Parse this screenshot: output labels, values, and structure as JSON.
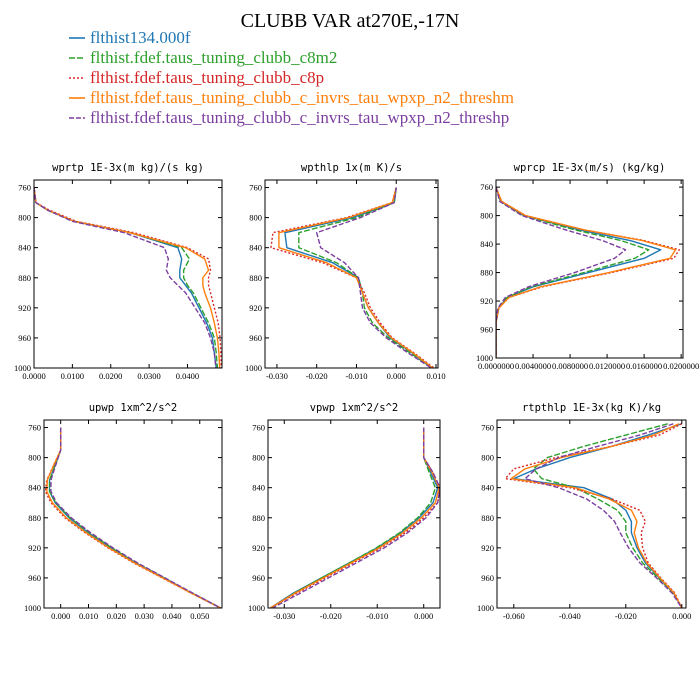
{
  "title": "CLUBB VAR at270E,-17N",
  "legend": [
    {
      "name": "flthist134.000f",
      "color": "#1f77b4",
      "dash": ""
    },
    {
      "name": "flthist.fdef.taus_tuning_clubb_c8m2",
      "color": "#2ca02c",
      "dash": "6,2"
    },
    {
      "name": "flthist.fdef.taus_tuning_clubb_c8p",
      "color": "#d62728",
      "dash": "2,2"
    },
    {
      "name": "flthist.fdef.taus_tuning_clubb_c_invrs_tau_wpxp_n2_threshm",
      "color": "#ff7f0e",
      "dash": ""
    },
    {
      "name": "flthist.fdef.taus_tuning_clubb_c_invrs_tau_wpxp_n2_threshp",
      "color": "#7b3fa0",
      "dash": "5,2"
    }
  ],
  "chart_data": [
    {
      "type": "line",
      "title": "wprtp  1E-3x(m kg)/(s kg)",
      "xlim": [
        0,
        0.049
      ],
      "ylim": [
        750,
        1000
      ],
      "y_reversed": true,
      "xticks": [
        "0.0000",
        "0.0100",
        "0.0200",
        "0.0300",
        "0.0400"
      ],
      "xtick_values": [
        0,
        0.01,
        0.02,
        0.03,
        0.04
      ],
      "yticks": [
        "760",
        "800",
        "840",
        "880",
        "920",
        "960",
        "1000"
      ],
      "y": [
        760,
        780,
        790,
        805,
        820,
        840,
        855,
        870,
        880,
        890,
        900,
        920,
        940,
        960,
        980,
        1000
      ],
      "series": [
        {
          "values": [
            0.0,
            0.0005,
            0.0035,
            0.0105,
            0.025,
            0.0375,
            0.0385,
            0.038,
            0.038,
            0.0395,
            0.041,
            0.043,
            0.045,
            0.0465,
            0.047,
            0.0475
          ]
        },
        {
          "values": [
            0.0,
            0.0005,
            0.0035,
            0.0105,
            0.025,
            0.0385,
            0.0405,
            0.039,
            0.039,
            0.04,
            0.0415,
            0.0435,
            0.0455,
            0.047,
            0.0475,
            0.0478
          ]
        },
        {
          "values": [
            0.0,
            0.0005,
            0.004,
            0.011,
            0.026,
            0.04,
            0.0455,
            0.046,
            0.0455,
            0.0455,
            0.046,
            0.047,
            0.048,
            0.0485,
            0.0487,
            0.0488
          ]
        },
        {
          "values": [
            0.0,
            0.0005,
            0.0035,
            0.0105,
            0.025,
            0.0395,
            0.0445,
            0.0455,
            0.044,
            0.044,
            0.0445,
            0.046,
            0.047,
            0.0478,
            0.0482,
            0.0484
          ]
        },
        {
          "values": [
            0.0,
            0.0005,
            0.0035,
            0.01,
            0.0235,
            0.034,
            0.035,
            0.0345,
            0.0355,
            0.0375,
            0.0395,
            0.042,
            0.0445,
            0.046,
            0.047,
            0.0474
          ]
        }
      ]
    },
    {
      "type": "line",
      "title": "wpthlp  1x(m K)/s",
      "xlim": [
        -0.033,
        0.0105
      ],
      "ylim": [
        750,
        1000
      ],
      "y_reversed": true,
      "xticks": [
        "-0.030",
        "-0.020",
        "-0.010",
        "0.000",
        "0.010"
      ],
      "xtick_values": [
        -0.03,
        -0.02,
        -0.01,
        0,
        0.01
      ],
      "yticks": [
        "760",
        "800",
        "840",
        "880",
        "920",
        "960",
        "1000"
      ],
      "y": [
        760,
        780,
        800,
        820,
        840,
        860,
        880,
        900,
        920,
        940,
        960,
        980,
        1000
      ],
      "series": [
        {
          "values": [
            0.0,
            -0.0005,
            -0.011,
            -0.028,
            -0.0275,
            -0.016,
            -0.0095,
            -0.0085,
            -0.007,
            -0.0045,
            -0.0015,
            0.004,
            0.009
          ]
        },
        {
          "values": [
            0.0,
            -0.0005,
            -0.01,
            -0.0245,
            -0.0245,
            -0.015,
            -0.0095,
            -0.0085,
            -0.008,
            -0.006,
            -0.002,
            0.0035,
            0.009
          ]
        },
        {
          "values": [
            0.0,
            -0.001,
            -0.0125,
            -0.031,
            -0.0315,
            -0.0185,
            -0.01,
            -0.008,
            -0.0065,
            -0.004,
            -0.001,
            0.0045,
            0.0095
          ]
        },
        {
          "values": [
            0.0,
            -0.001,
            -0.012,
            -0.0295,
            -0.0295,
            -0.0175,
            -0.01,
            -0.0085,
            -0.007,
            -0.0045,
            -0.0012,
            0.0042,
            0.0092
          ]
        },
        {
          "values": [
            0.0,
            -0.0005,
            -0.009,
            -0.02,
            -0.019,
            -0.013,
            -0.0095,
            -0.009,
            -0.0085,
            -0.0065,
            -0.0025,
            0.003,
            0.0088
          ]
        }
      ]
    },
    {
      "type": "line",
      "title": "wprcp  1E-3x(m/s) (kg/kg)",
      "xlim": [
        0,
        0.0202
      ],
      "ylim": [
        750,
        1000
      ],
      "y_reversed": true,
      "xticks": [
        "0.0000000",
        "0.0040000",
        "0.0080000",
        "0.0120000",
        "0.0160000",
        "0.0200000"
      ],
      "xtick_values": [
        0,
        0.004,
        0.008,
        0.012,
        0.016,
        0.02
      ],
      "yticks": [
        "760",
        "800",
        "840",
        "880",
        "920",
        "960",
        "1000"
      ],
      "y": [
        760,
        780,
        800,
        820,
        835,
        848,
        860,
        880,
        900,
        915,
        930,
        950,
        1000
      ],
      "series": [
        {
          "values": [
            0.0,
            0.0005,
            0.003,
            0.009,
            0.0145,
            0.0178,
            0.016,
            0.01,
            0.004,
            0.0012,
            0.0003,
            0.0,
            0.0
          ]
        },
        {
          "values": [
            0.0,
            0.0005,
            0.003,
            0.0085,
            0.0135,
            0.0165,
            0.015,
            0.0095,
            0.0038,
            0.0012,
            0.0003,
            0.0,
            0.0
          ]
        },
        {
          "values": [
            0.0,
            0.0006,
            0.0032,
            0.0095,
            0.016,
            0.0198,
            0.0192,
            0.0125,
            0.005,
            0.0014,
            0.0003,
            0.0,
            0.0
          ]
        },
        {
          "values": [
            0.0,
            0.0006,
            0.0032,
            0.0095,
            0.0158,
            0.0194,
            0.0188,
            0.0122,
            0.0048,
            0.0014,
            0.0003,
            0.0,
            0.0
          ]
        },
        {
          "values": [
            0.0,
            0.0004,
            0.0028,
            0.0075,
            0.0115,
            0.014,
            0.0128,
            0.0085,
            0.0035,
            0.001,
            0.0002,
            0.0,
            0.0
          ]
        }
      ]
    },
    {
      "type": "line",
      "title": "upwp  1xm^2/s^2",
      "xlim": [
        -0.006,
        0.058
      ],
      "ylim": [
        750,
        1000
      ],
      "y_reversed": true,
      "xticks": [
        "0.000",
        "0.010",
        "0.020",
        "0.030",
        "0.040",
        "0.050"
      ],
      "xtick_values": [
        0,
        0.01,
        0.02,
        0.03,
        0.04,
        0.05
      ],
      "yticks": [
        "760",
        "800",
        "840",
        "880",
        "920",
        "960",
        "1000"
      ],
      "y": [
        760,
        790,
        810,
        830,
        845,
        860,
        880,
        900,
        920,
        940,
        960,
        980,
        1000
      ],
      "series": [
        {
          "values": [
            0.0,
            0.0,
            -0.002,
            -0.004,
            -0.004,
            -0.002,
            0.003,
            0.01,
            0.018,
            0.027,
            0.037,
            0.047,
            0.0575
          ]
        },
        {
          "values": [
            0.0,
            0.0,
            -0.002,
            -0.004,
            -0.004,
            -0.0018,
            0.0033,
            0.0103,
            0.0183,
            0.0272,
            0.0372,
            0.0472,
            0.0575
          ]
        },
        {
          "values": [
            0.0,
            0.0,
            -0.0025,
            -0.005,
            -0.0055,
            -0.0035,
            0.0015,
            0.0088,
            0.017,
            0.0262,
            0.0365,
            0.0468,
            0.0575
          ]
        },
        {
          "values": [
            0.0,
            0.0,
            -0.0025,
            -0.0048,
            -0.005,
            -0.003,
            0.002,
            0.0092,
            0.0173,
            0.0265,
            0.0367,
            0.0469,
            0.0575
          ]
        },
        {
          "values": [
            0.0,
            0.0,
            -0.0018,
            -0.0035,
            -0.0035,
            -0.0015,
            0.0038,
            0.0108,
            0.0188,
            0.0276,
            0.0375,
            0.0474,
            0.0575
          ]
        }
      ]
    },
    {
      "type": "line",
      "title": "vpwp  1xm^2/s^2",
      "xlim": [
        -0.0335,
        0.0035
      ],
      "ylim": [
        750,
        1000
      ],
      "y_reversed": true,
      "xticks": [
        "-0.030",
        "-0.020",
        "-0.010",
        "0.000"
      ],
      "xtick_values": [
        -0.03,
        -0.02,
        -0.01,
        0
      ],
      "yticks": [
        "760",
        "800",
        "840",
        "880",
        "920",
        "960",
        "1000"
      ],
      "y": [
        760,
        800,
        820,
        840,
        860,
        880,
        900,
        920,
        940,
        960,
        980,
        1000
      ],
      "series": [
        {
          "values": [
            0.0,
            0.0,
            0.0015,
            0.003,
            0.002,
            -0.001,
            -0.005,
            -0.01,
            -0.016,
            -0.022,
            -0.028,
            -0.033
          ]
        },
        {
          "values": [
            0.0,
            0.0,
            0.0012,
            0.0025,
            0.0015,
            -0.0013,
            -0.0052,
            -0.0102,
            -0.016,
            -0.022,
            -0.0278,
            -0.0328
          ]
        },
        {
          "values": [
            0.0,
            0.0,
            0.002,
            0.0035,
            0.003,
            0.0,
            -0.004,
            -0.0092,
            -0.0152,
            -0.0212,
            -0.0272,
            -0.033
          ]
        },
        {
          "values": [
            0.0,
            0.0,
            0.0018,
            0.0033,
            0.0025,
            -0.0005,
            -0.0045,
            -0.0096,
            -0.0156,
            -0.0216,
            -0.0276,
            -0.033
          ]
        },
        {
          "values": [
            0.0,
            0.0,
            0.002,
            0.0035,
            0.003,
            0.0005,
            -0.0035,
            -0.0085,
            -0.0145,
            -0.0205,
            -0.0265,
            -0.0325
          ]
        }
      ]
    },
    {
      "type": "line",
      "title": "rtpthlp  1E-3x(kg K)/kg",
      "xlim": [
        -0.066,
        0.0015
      ],
      "ylim": [
        750,
        1000
      ],
      "y_reversed": true,
      "xticks": [
        "-0.060",
        "-0.040",
        "-0.020",
        "0.000"
      ],
      "xtick_values": [
        -0.06,
        -0.04,
        -0.02,
        0
      ],
      "yticks": [
        "760",
        "800",
        "840",
        "880",
        "920",
        "960",
        "1000"
      ],
      "y": [
        755,
        770,
        785,
        800,
        815,
        828,
        840,
        855,
        870,
        885,
        900,
        920,
        940,
        960,
        980,
        1000
      ],
      "series": [
        {
          "values": [
            0.0,
            -0.012,
            -0.025,
            -0.04,
            -0.052,
            -0.06,
            -0.035,
            -0.025,
            -0.02,
            -0.018,
            -0.018,
            -0.016,
            -0.013,
            -0.008,
            -0.003,
            0.0
          ]
        },
        {
          "values": [
            -0.005,
            -0.02,
            -0.035,
            -0.048,
            -0.053,
            -0.05,
            -0.038,
            -0.03,
            -0.023,
            -0.02,
            -0.02,
            -0.0175,
            -0.014,
            -0.0085,
            -0.003,
            0.0
          ]
        },
        {
          "values": [
            0.0,
            -0.008,
            -0.025,
            -0.045,
            -0.06,
            -0.063,
            -0.04,
            -0.025,
            -0.015,
            -0.013,
            -0.0145,
            -0.014,
            -0.012,
            -0.0075,
            -0.0025,
            0.0
          ]
        },
        {
          "values": [
            -0.001,
            -0.01,
            -0.025,
            -0.043,
            -0.056,
            -0.061,
            -0.038,
            -0.026,
            -0.018,
            -0.016,
            -0.017,
            -0.0155,
            -0.0125,
            -0.0078,
            -0.0028,
            0.0
          ]
        },
        {
          "values": [
            -0.003,
            -0.015,
            -0.03,
            -0.044,
            -0.052,
            -0.056,
            -0.044,
            -0.034,
            -0.028,
            -0.024,
            -0.022,
            -0.019,
            -0.015,
            -0.009,
            -0.0035,
            0.0
          ]
        }
      ]
    }
  ]
}
